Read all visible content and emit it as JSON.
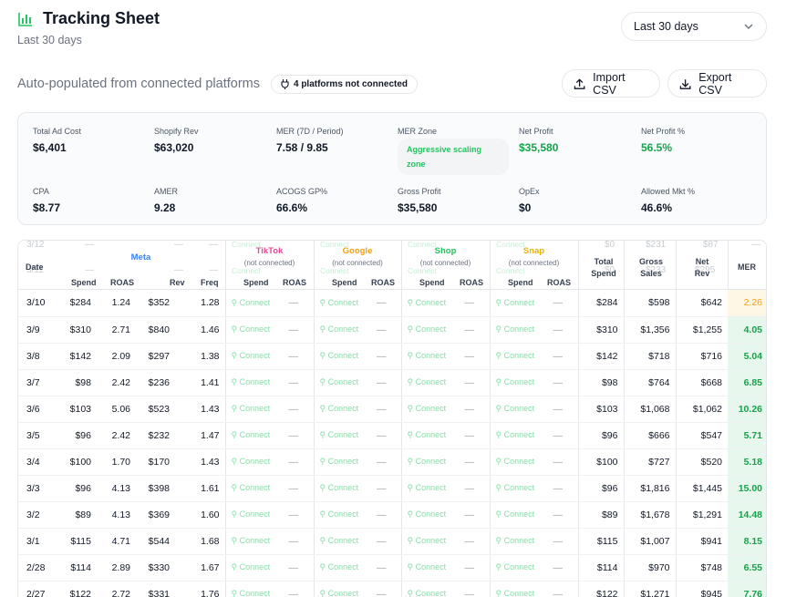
{
  "header": {
    "title": "Tracking Sheet",
    "subtitle": "Last 30 days",
    "range_label": "Last 30 days"
  },
  "subbar": {
    "auto_text": "Auto-populated from connected platforms",
    "badge": "4 platforms not connected",
    "import_label": "Import CSV",
    "export_label": "Export CSV"
  },
  "stats": [
    {
      "label": "Total Ad Cost",
      "value": "$6,401",
      "color": "default"
    },
    {
      "label": "Shopify Rev",
      "value": "$63,020",
      "color": "default"
    },
    {
      "label": "MER (7D / Period)",
      "value": "7.58 / 9.85",
      "color": "default"
    },
    {
      "label": "MER Zone",
      "value": "Aggressive scaling zone",
      "color": "green"
    },
    {
      "label": "Net Profit",
      "value": "$35,580",
      "color": "green"
    },
    {
      "label": "Net Profit %",
      "value": "56.5%",
      "color": "green"
    },
    {
      "label": "CPA",
      "value": "$8.77",
      "color": "default"
    },
    {
      "label": "AMER",
      "value": "9.28",
      "color": "default"
    },
    {
      "label": "ACOGS GP%",
      "value": "66.6%",
      "color": "default"
    },
    {
      "label": "Gross Profit",
      "value": "$35,580",
      "color": "default"
    },
    {
      "label": "OpEx",
      "value": "$0",
      "color": "default"
    },
    {
      "label": "Allowed Mkt %",
      "value": "46.6%",
      "color": "default"
    }
  ],
  "table": {
    "date_header": "Date",
    "groups": {
      "meta": {
        "name": "Meta",
        "color": "#3b82f6"
      },
      "tiktok": {
        "name": "TikTok",
        "color": "#ec4899",
        "note": "(not connected)"
      },
      "google": {
        "name": "Google",
        "color": "#f59e0b",
        "note": "(not connected)"
      },
      "shop": {
        "name": "Shop",
        "color": "#22c55e",
        "note": "(not connected)"
      },
      "snap": {
        "name": "Snap",
        "color": "#eab308",
        "note": "(not connected)"
      }
    },
    "sub_headers": {
      "spend": "Spend",
      "roas": "ROAS",
      "rev": "Rev",
      "freq": "Freq",
      "total_spend": "Total Spend",
      "gross_sales": "Gross Sales",
      "net_rev": "Net Rev",
      "mer": "MER"
    },
    "connect_label": "Connect",
    "dash": "—",
    "ghost_row": {
      "date": "3/12",
      "total_spend": "$0",
      "gross_sales": "$231",
      "net_rev": "$87",
      "mer": "—",
      "next_date": "3/11",
      "next_total_spend": "$0",
      "next_gross_sales": "$233",
      "next_net_rev": "$295"
    },
    "rows": [
      {
        "date": "3/10",
        "spend": "$284",
        "roas": "1.24",
        "rev": "$352",
        "freq": "1.28",
        "total": "$284",
        "gross": "$598",
        "net": "$642",
        "mer": "2.26",
        "zone": "warn"
      },
      {
        "date": "3/9",
        "spend": "$310",
        "roas": "2.71",
        "rev": "$840",
        "freq": "1.46",
        "total": "$310",
        "gross": "$1,356",
        "net": "$1,255",
        "mer": "4.05",
        "zone": "good"
      },
      {
        "date": "3/8",
        "spend": "$142",
        "roas": "2.09",
        "rev": "$297",
        "freq": "1.38",
        "total": "$142",
        "gross": "$718",
        "net": "$716",
        "mer": "5.04",
        "zone": "good"
      },
      {
        "date": "3/7",
        "spend": "$98",
        "roas": "2.42",
        "rev": "$236",
        "freq": "1.41",
        "total": "$98",
        "gross": "$764",
        "net": "$668",
        "mer": "6.85",
        "zone": "good"
      },
      {
        "date": "3/6",
        "spend": "$103",
        "roas": "5.06",
        "rev": "$523",
        "freq": "1.43",
        "total": "$103",
        "gross": "$1,068",
        "net": "$1,062",
        "mer": "10.26",
        "zone": "good"
      },
      {
        "date": "3/5",
        "spend": "$96",
        "roas": "2.42",
        "rev": "$232",
        "freq": "1.47",
        "total": "$96",
        "gross": "$666",
        "net": "$547",
        "mer": "5.71",
        "zone": "good"
      },
      {
        "date": "3/4",
        "spend": "$100",
        "roas": "1.70",
        "rev": "$170",
        "freq": "1.43",
        "total": "$100",
        "gross": "$727",
        "net": "$520",
        "mer": "5.18",
        "zone": "good"
      },
      {
        "date": "3/3",
        "spend": "$96",
        "roas": "4.13",
        "rev": "$398",
        "freq": "1.61",
        "total": "$96",
        "gross": "$1,816",
        "net": "$1,445",
        "mer": "15.00",
        "zone": "good"
      },
      {
        "date": "3/2",
        "spend": "$89",
        "roas": "4.13",
        "rev": "$369",
        "freq": "1.60",
        "total": "$89",
        "gross": "$1,678",
        "net": "$1,291",
        "mer": "14.48",
        "zone": "good"
      },
      {
        "date": "3/1",
        "spend": "$115",
        "roas": "4.71",
        "rev": "$544",
        "freq": "1.68",
        "total": "$115",
        "gross": "$1,007",
        "net": "$941",
        "mer": "8.15",
        "zone": "good"
      },
      {
        "date": "2/28",
        "spend": "$114",
        "roas": "2.89",
        "rev": "$330",
        "freq": "1.67",
        "total": "$114",
        "gross": "$970",
        "net": "$748",
        "mer": "6.55",
        "zone": "good"
      },
      {
        "date": "2/27",
        "spend": "$122",
        "roas": "2.72",
        "rev": "$331",
        "freq": "1.76",
        "total": "$122",
        "gross": "$1,271",
        "net": "$945",
        "mer": "7.76",
        "zone": "good"
      }
    ]
  }
}
